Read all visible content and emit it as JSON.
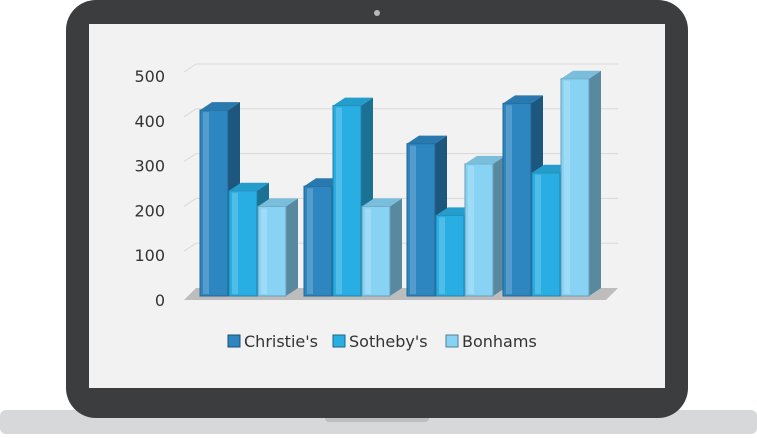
{
  "colors": {
    "laptop_frame": "#3c3d3f",
    "screen": "#f2f2f2",
    "base": "#d7d8da",
    "camera": "#b8b8b8",
    "floor": "#bdbdbd",
    "gridline": "#d9d9d9"
  },
  "legend": [
    {
      "label": "Christie's",
      "color": "#2e86c1"
    },
    {
      "label": "Sotheby's",
      "color": "#29aee3"
    },
    {
      "label": "Bonhams",
      "color": "#88d3f4"
    }
  ],
  "chart_data": {
    "type": "bar",
    "style": "3d-clustered-column",
    "categories": [
      "",
      "",
      "",
      ""
    ],
    "series": [
      {
        "name": "Christie's",
        "values": [
          415,
          245,
          340,
          430
        ],
        "color": "#2e86c1"
      },
      {
        "name": "Sotheby's",
        "values": [
          235,
          425,
          180,
          275
        ],
        "color": "#29aee3"
      },
      {
        "name": "Bonhams",
        "values": [
          200,
          200,
          295,
          485
        ],
        "color": "#88d3f4"
      }
    ],
    "yticks": [
      "0",
      "100",
      "200",
      "300",
      "400",
      "500"
    ],
    "ylim": [
      0,
      500
    ],
    "title": "",
    "xlabel": "",
    "ylabel": "",
    "grid": true,
    "legend_position": "bottom"
  }
}
